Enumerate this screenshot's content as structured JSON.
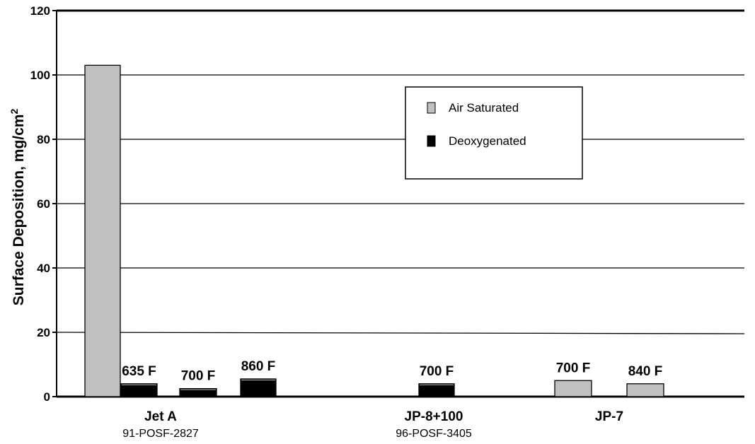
{
  "chart_data": {
    "type": "bar",
    "ylabel": "Surface Deposition, mg/cm",
    "ylabel_sup": "2",
    "ylim": [
      0,
      120
    ],
    "yticks": [
      "0",
      "20",
      "40",
      "60",
      "80",
      "100",
      "120"
    ],
    "grid": true,
    "legend_position": "center",
    "colors": {
      "air_saturated": "#c0c0c0",
      "deoxygenated": "#000000",
      "axis": "#000000"
    },
    "legend": [
      {
        "key": "air_saturated",
        "label": "Air Saturated"
      },
      {
        "key": "deoxygenated",
        "label": "Deoxygenated"
      }
    ],
    "groups": [
      {
        "name": "Jet A",
        "sub": "91-POSF-2827"
      },
      {
        "name": "JP-8+100",
        "sub": "96-POSF-3405"
      },
      {
        "name": "JP-7",
        "sub": ""
      }
    ],
    "bars": [
      {
        "group": "Jet A",
        "series": "air_saturated",
        "value": 103,
        "label": ""
      },
      {
        "group": "Jet A",
        "series": "deoxygenated",
        "value": 4,
        "label": "635 F"
      },
      {
        "group": "Jet A",
        "series": "deoxygenated",
        "value": 2.5,
        "label": "700 F"
      },
      {
        "group": "Jet A",
        "series": "deoxygenated",
        "value": 5.5,
        "label": "860 F"
      },
      {
        "group": "JP-8+100",
        "series": "deoxygenated",
        "value": 4,
        "label": "700 F"
      },
      {
        "group": "JP-7",
        "series": "air_saturated",
        "value": 5,
        "label": "700 F"
      },
      {
        "group": "JP-7",
        "series": "air_saturated",
        "value": 4,
        "label": "840 F"
      }
    ]
  }
}
